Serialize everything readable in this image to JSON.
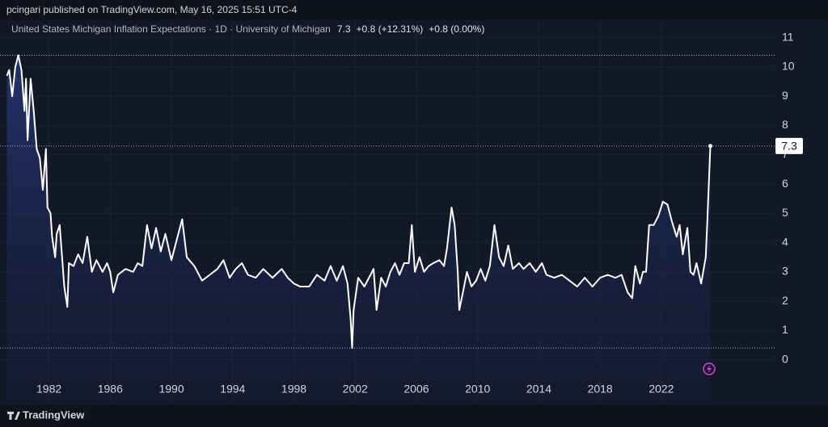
{
  "header": {
    "text": "pcingari published on TradingView.com, May 16, 2025 15:51 UTC-4"
  },
  "footer": {
    "brand": "TradingView"
  },
  "chart_data": {
    "type": "line",
    "title": "United States Michigan Inflation Expectations · 1D · University of Michigan",
    "last": 7.3,
    "change": "+0.8 (+12.31%)",
    "change_ext": "+0.8 (0.00%)",
    "color": "#ffffff",
    "grid": true,
    "xlim": [
      1978.8,
      2029.4
    ],
    "ylim": [
      -1.5,
      11.6
    ],
    "xticks": [
      1982,
      1986,
      1990,
      1994,
      1998,
      2002,
      2006,
      2010,
      2014,
      2018,
      2022
    ],
    "yticks": [
      0,
      1,
      2,
      3,
      4,
      5,
      6,
      7,
      8,
      9,
      10,
      11
    ],
    "series": [
      {
        "name": "United States Michigan Inflation Expectations",
        "color": "#ffffff",
        "x": [
          1979.25,
          1979.4,
          1979.6,
          1979.8,
          1980.0,
          1980.2,
          1980.4,
          1980.5,
          1980.6,
          1980.8,
          1981.0,
          1981.2,
          1981.4,
          1981.6,
          1981.8,
          1981.9,
          1982.1,
          1982.2,
          1982.4,
          1982.5,
          1982.7,
          1982.9,
          1983.0,
          1983.2,
          1983.3,
          1983.6,
          1983.9,
          1984.2,
          1984.5,
          1984.8,
          1985.1,
          1985.5,
          1985.8,
          1986.0,
          1986.2,
          1986.5,
          1987.0,
          1987.5,
          1987.8,
          1988.1,
          1988.4,
          1988.7,
          1989.0,
          1989.3,
          1989.6,
          1990.0,
          1990.4,
          1990.7,
          1991.0,
          1991.5,
          1992.0,
          1992.5,
          1993.0,
          1993.4,
          1993.8,
          1994.2,
          1994.6,
          1995.0,
          1995.5,
          1996.0,
          1996.6,
          1997.2,
          1997.6,
          1998.0,
          1998.4,
          1999.0,
          1999.5,
          2000.0,
          2000.4,
          2000.8,
          2001.2,
          2001.5,
          2001.7,
          2001.8,
          2001.9,
          2002.2,
          2002.6,
          2003.0,
          2003.2,
          2003.4,
          2003.7,
          2004.0,
          2004.3,
          2004.6,
          2004.9,
          2005.2,
          2005.5,
          2005.7,
          2005.9,
          2006.2,
          2006.5,
          2006.8,
          2007.1,
          2007.5,
          2007.8,
          2008.0,
          2008.3,
          2008.5,
          2008.7,
          2008.8,
          2009.0,
          2009.3,
          2009.6,
          2009.9,
          2010.2,
          2010.5,
          2010.8,
          2011.1,
          2011.4,
          2011.7,
          2012.0,
          2012.3,
          2012.7,
          2013.0,
          2013.4,
          2013.8,
          2014.2,
          2014.5,
          2015.0,
          2015.5,
          2016.0,
          2016.5,
          2017.0,
          2017.5,
          2018.0,
          2018.5,
          2019.0,
          2019.4,
          2019.8,
          2020.1,
          2020.3,
          2020.6,
          2020.8,
          2021.0,
          2021.2,
          2021.5,
          2021.8,
          2022.1,
          2022.4,
          2022.7,
          2023.0,
          2023.2,
          2023.4,
          2023.7,
          2023.9,
          2024.1,
          2024.3,
          2024.6,
          2024.9,
          2025.0,
          2025.2
        ],
        "values": [
          9.7,
          9.9,
          9.0,
          10.0,
          10.4,
          9.9,
          8.5,
          9.6,
          7.5,
          9.6,
          8.5,
          7.2,
          6.9,
          5.8,
          7.2,
          5.2,
          5.0,
          4.2,
          3.5,
          4.3,
          4.6,
          3.2,
          2.5,
          1.8,
          3.3,
          3.2,
          3.6,
          3.3,
          4.2,
          3.0,
          3.4,
          3.0,
          3.3,
          3.0,
          2.3,
          2.9,
          3.1,
          3.0,
          3.3,
          3.2,
          4.6,
          3.8,
          4.5,
          3.7,
          4.3,
          3.4,
          4.2,
          4.8,
          3.5,
          3.2,
          2.7,
          2.9,
          3.1,
          3.4,
          2.8,
          3.1,
          3.3,
          2.9,
          2.8,
          3.1,
          2.8,
          3.1,
          2.8,
          2.6,
          2.5,
          2.5,
          2.9,
          2.7,
          3.2,
          2.7,
          3.2,
          2.6,
          1.4,
          0.4,
          1.7,
          2.8,
          2.5,
          2.9,
          3.1,
          1.7,
          2.8,
          2.5,
          3.0,
          3.3,
          2.9,
          3.3,
          3.3,
          4.6,
          3.0,
          3.5,
          3.0,
          3.2,
          3.3,
          3.4,
          3.2,
          3.8,
          5.2,
          4.6,
          3.0,
          1.7,
          2.2,
          3.0,
          2.5,
          2.7,
          3.1,
          2.7,
          3.2,
          4.6,
          3.5,
          3.2,
          3.9,
          3.1,
          3.3,
          3.1,
          3.3,
          3.0,
          3.3,
          2.9,
          2.8,
          2.9,
          2.7,
          2.5,
          2.8,
          2.5,
          2.8,
          2.9,
          2.8,
          2.9,
          2.3,
          2.1,
          3.2,
          2.6,
          3.0,
          3.0,
          4.6,
          4.6,
          4.9,
          5.4,
          5.3,
          4.7,
          4.2,
          4.6,
          3.6,
          4.5,
          3.0,
          2.9,
          3.3,
          2.6,
          3.5,
          4.7,
          7.3
        ]
      }
    ]
  }
}
